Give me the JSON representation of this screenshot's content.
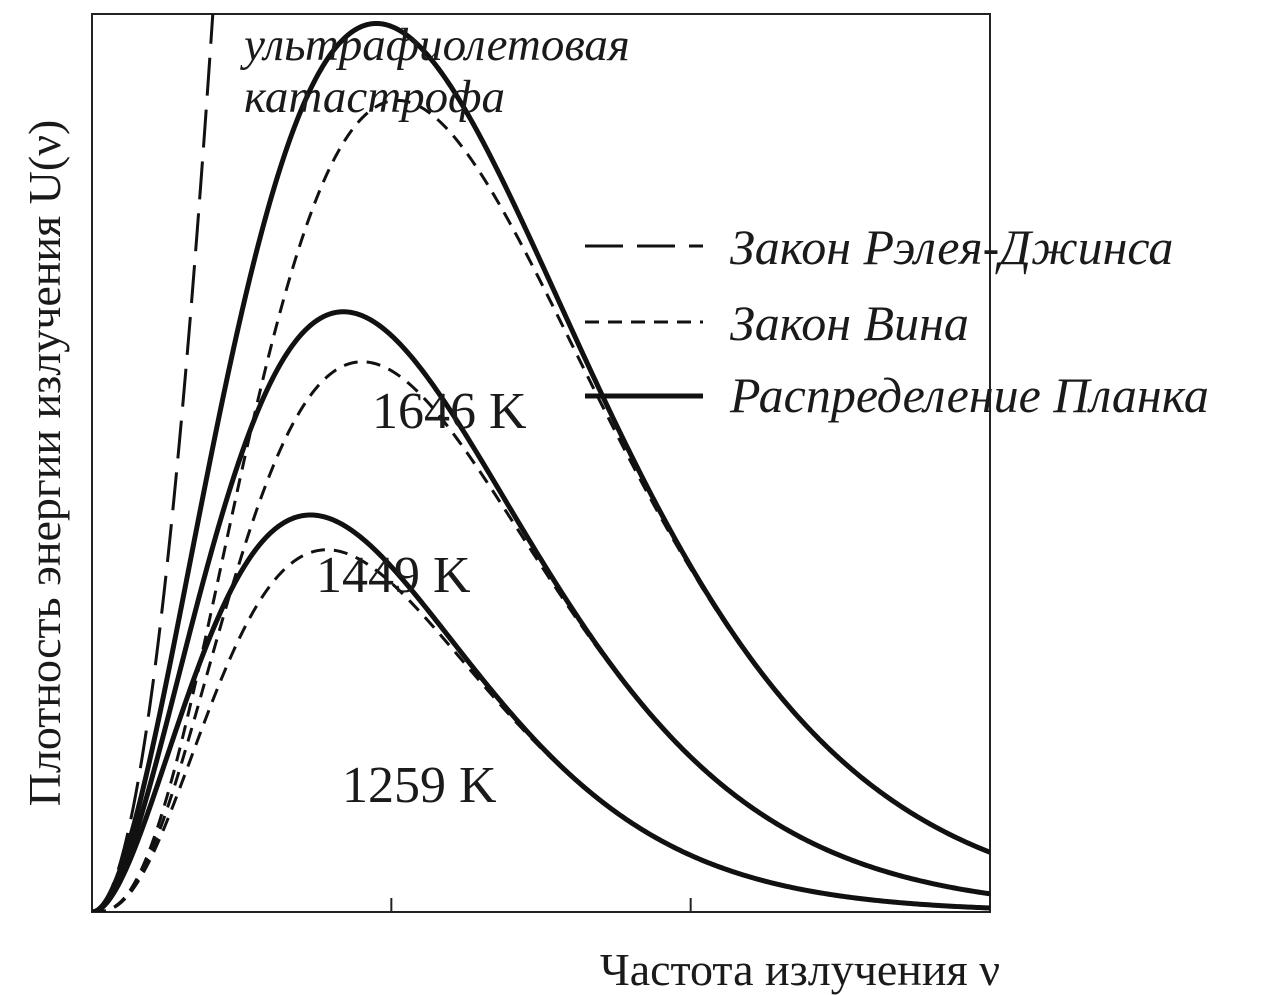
{
  "chart_data": {
    "type": "line",
    "title": "",
    "xlabel": "Частота излучения ν",
    "ylabel": "Плотность энергии излучения U(ν)",
    "xlim": [
      0,
      3
    ],
    "ylim": [
      0,
      9.5
    ],
    "x_ticks": [
      1,
      2
    ],
    "grid": false,
    "legend_position": "top-right",
    "legend": [
      {
        "label": "Закон Рэлея-Джинса",
        "style": "long-dash"
      },
      {
        "label": "Закон Вина",
        "style": "short-dash"
      },
      {
        "label": "Распределение Планка",
        "style": "solid"
      }
    ],
    "annotation": {
      "line1": "ультрафиолетовая",
      "line2": "катастрофа"
    },
    "curves": [
      {
        "label": "1646 K",
        "temperature": 1646,
        "peak_x": 0.95,
        "planck_peak": 9.4,
        "wien_peak": 8.85
      },
      {
        "label": "1449 K",
        "temperature": 1449,
        "peak_x": 0.84,
        "planck_peak": 6.35,
        "wien_peak": 6.0
      },
      {
        "label": "1259 K",
        "temperature": 1259,
        "peak_x": 0.73,
        "planck_peak": 4.2,
        "wien_peak": 3.95
      }
    ],
    "rayleigh_jeans": {
      "temperature": 1646,
      "style": "long-dash"
    },
    "colors": {
      "line": "#111111",
      "frame": "#222222",
      "text": "#1a1a1a"
    }
  }
}
